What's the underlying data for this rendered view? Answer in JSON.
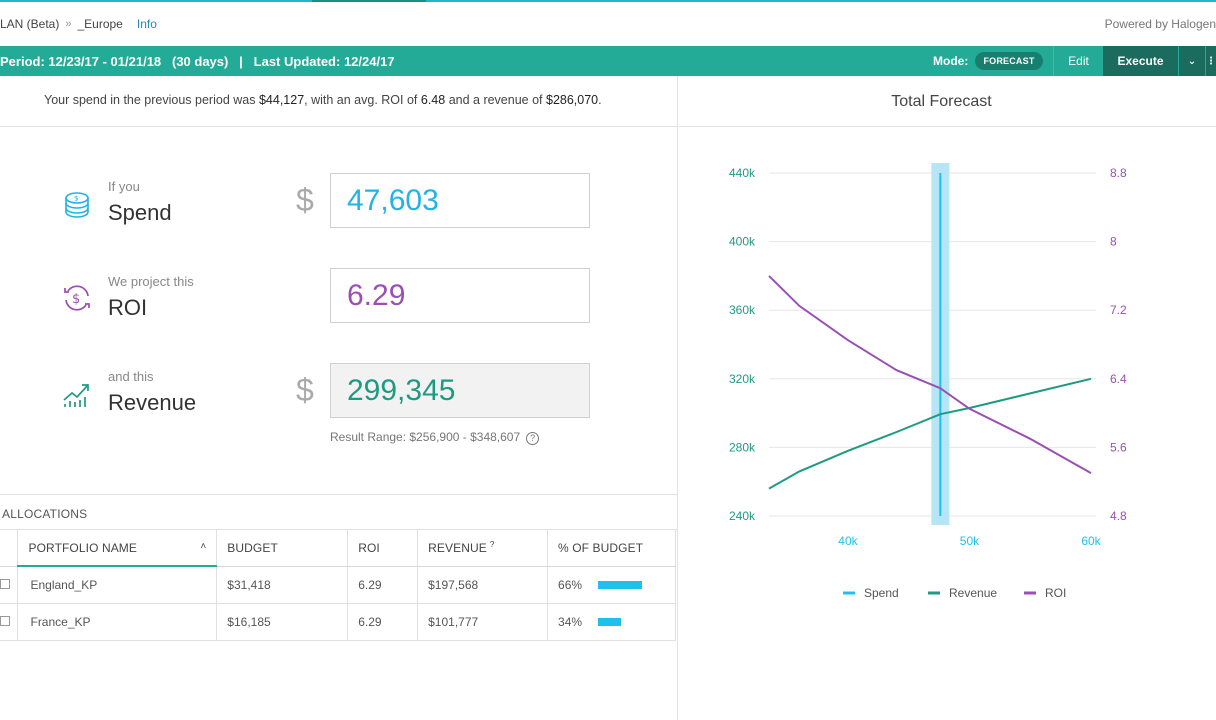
{
  "breadcrumb": {
    "root": "LAN (Beta)",
    "separator": "»",
    "current": "_Europe",
    "info_link": "Info"
  },
  "powered_by": "Powered by Halogen",
  "status_bar": {
    "period": "Period: 12/23/17 - 01/21/18   (30 days)   |   Last Updated: 12/24/17",
    "mode_label": "Mode:",
    "mode_value": "FORECAST",
    "edit_label": "Edit",
    "execute_label": "Execute",
    "caret": "⌄",
    "more": "⋮"
  },
  "summary": {
    "prefix": "Your spend in the previous period was ",
    "spend": "$44,127",
    "mid1": ", with an avg. ROI of ",
    "roi": "6.48",
    "mid2": " and a revenue of ",
    "revenue": "$286,070",
    "suffix": "."
  },
  "metrics": {
    "spend": {
      "sub": "If you",
      "title": "Spend",
      "currency": "$",
      "value": "47,603",
      "color": "#20b4e6"
    },
    "roi": {
      "sub": "We project this",
      "title": "ROI",
      "value": "6.29",
      "color": "#9a4fb3"
    },
    "revenue": {
      "sub": "and this",
      "title": "Revenue",
      "currency": "$",
      "value": "299,345",
      "color": "#1f9a82"
    },
    "result_range": "Result Range: $256,900 - $348,607",
    "help": "?"
  },
  "allocations": {
    "title": "ALLOCATIONS",
    "columns": [
      "PORTFOLIO NAME",
      "BUDGET",
      "ROI",
      "REVENUE",
      "% OF BUDGET"
    ],
    "sort_glyph": "˄",
    "revenue_help": "?",
    "rows": [
      {
        "name": "England_KP",
        "budget": "$31,418",
        "roi": "6.29",
        "revenue": "$197,568",
        "pct": "66%",
        "pct_value": 66
      },
      {
        "name": "France_KP",
        "budget": "$16,185",
        "roi": "6.29",
        "revenue": "$101,777",
        "pct": "34%",
        "pct_value": 34
      }
    ]
  },
  "forecast": {
    "title": "Total Forecast",
    "colors": {
      "spend": "#20c0ec",
      "revenue": "#1f9a82",
      "roi": "#9a4fb3"
    },
    "chart_data": {
      "type": "line",
      "x": [
        33500,
        40000,
        47600,
        50000,
        60000
      ],
      "x_ticks": [
        40000,
        50000,
        60000
      ],
      "x_tick_labels": [
        "40k",
        "50k",
        "60k"
      ],
      "xlim": [
        33500,
        60000
      ],
      "y_left_ticks": [
        "240k",
        "280k",
        "320k",
        "360k",
        "400k",
        "440k"
      ],
      "y_left_range": [
        240000,
        440000
      ],
      "y_right_ticks": [
        "4.8",
        "5.6",
        "6.4",
        "7.2",
        "8",
        "8.8"
      ],
      "y_right_range": [
        4.8,
        8.8
      ],
      "series": [
        {
          "name": "Revenue",
          "axis": "left",
          "x": [
            33500,
            36000,
            40000,
            44000,
            47600,
            50000,
            55000,
            60000
          ],
          "values": [
            256000,
            266000,
            278000,
            289000,
            299345,
            303000,
            311500,
            320000
          ]
        },
        {
          "name": "ROI",
          "axis": "right",
          "x": [
            33500,
            36000,
            40000,
            44000,
            47600,
            50000,
            55000,
            60000
          ],
          "values": [
            7.6,
            7.25,
            6.85,
            6.5,
            6.29,
            6.05,
            5.7,
            5.3
          ]
        }
      ],
      "spend_marker": {
        "name": "Spend",
        "x": 47600
      },
      "legend": [
        "Spend",
        "Revenue",
        "ROI"
      ],
      "legend_position": "bottom"
    }
  }
}
